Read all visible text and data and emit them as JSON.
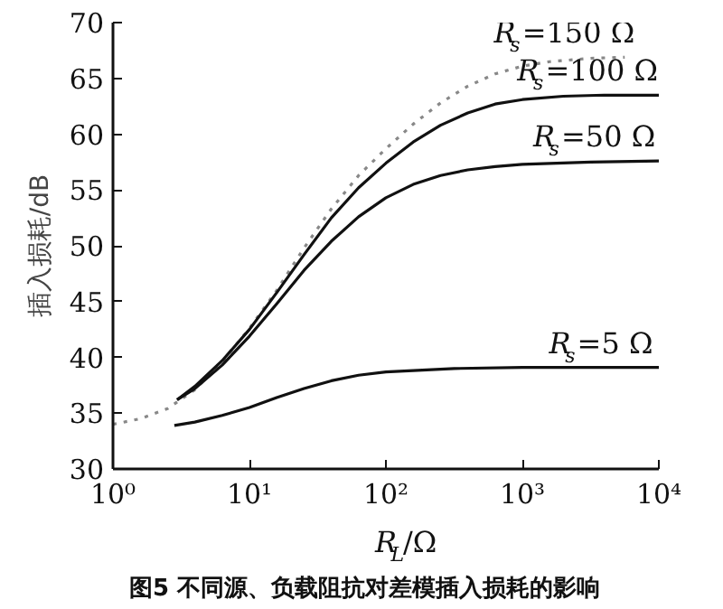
{
  "chart_data": {
    "type": "line",
    "xlabel": "R$_{L}$/Ω",
    "ylabel": "插入损耗/dB",
    "annotations": [
      "图5  不同源、负载阻抗对差模插入损耗的影响"
    ],
    "log": "x",
    "xlim": [
      1,
      10000
    ],
    "ylim": [
      30,
      70
    ],
    "xticks": [
      {
        "value": 1,
        "label": "10⁰"
      },
      {
        "value": 10,
        "label": "10¹"
      },
      {
        "value": 100,
        "label": "10²"
      },
      {
        "value": 1000,
        "label": "10³"
      },
      {
        "value": 10000,
        "label": "10⁴"
      }
    ],
    "yticks": [
      30,
      35,
      40,
      45,
      50,
      55,
      60,
      65,
      70
    ],
    "grid": false,
    "legend": false,
    "series": [
      {
        "name": "R$_{s}$=150 Ω",
        "color": "#888888",
        "line_style": "dotted",
        "x": [
          1,
          1.585,
          2.512,
          3.981,
          6.31,
          10,
          15.85,
          25.12,
          39.81,
          63.1,
          100,
          158.5,
          251.2,
          398.1,
          631,
          1000,
          1585,
          3162,
          5623
        ],
        "values": [
          34.0,
          34.5,
          35.4,
          37.1,
          39.6,
          42.6,
          46.0,
          49.8,
          53.3,
          56.3,
          58.7,
          60.9,
          62.8,
          64.3,
          65.4,
          66.1,
          66.5,
          66.8,
          66.9
        ]
      },
      {
        "name": "R$_{s}$=100 Ω",
        "color": "#111111",
        "line_style": "solid",
        "x": [
          2.951,
          3.981,
          6.31,
          10,
          15.85,
          25.12,
          39.81,
          63.1,
          100,
          158.5,
          251.2,
          398.1,
          631,
          1000,
          1995,
          3981,
          10000
        ],
        "values": [
          36.2,
          37.4,
          39.7,
          42.5,
          45.8,
          49.2,
          52.5,
          55.2,
          57.4,
          59.3,
          60.8,
          61.9,
          62.7,
          63.1,
          63.4,
          63.5,
          63.5
        ]
      },
      {
        "name": "R$_{s}$=50 Ω",
        "color": "#111111",
        "line_style": "solid",
        "x": [
          2.951,
          3.981,
          6.31,
          10,
          15.85,
          25.12,
          39.81,
          63.1,
          100,
          158.5,
          251.2,
          398.1,
          631,
          1000,
          3162,
          10000
        ],
        "values": [
          36.2,
          37.2,
          39.3,
          41.9,
          44.8,
          47.8,
          50.4,
          52.6,
          54.3,
          55.5,
          56.3,
          56.8,
          57.1,
          57.3,
          57.5,
          57.6
        ]
      },
      {
        "name": "R$_{s}$=5 Ω",
        "color": "#111111",
        "line_style": "solid",
        "x": [
          2.818,
          3.981,
          6.31,
          10,
          15.85,
          25.12,
          39.81,
          63.1,
          100,
          316.2,
          1000,
          10000
        ],
        "values": [
          33.9,
          34.2,
          34.8,
          35.5,
          36.4,
          37.2,
          37.9,
          38.4,
          38.7,
          39.0,
          39.1,
          39.1
        ]
      }
    ]
  }
}
